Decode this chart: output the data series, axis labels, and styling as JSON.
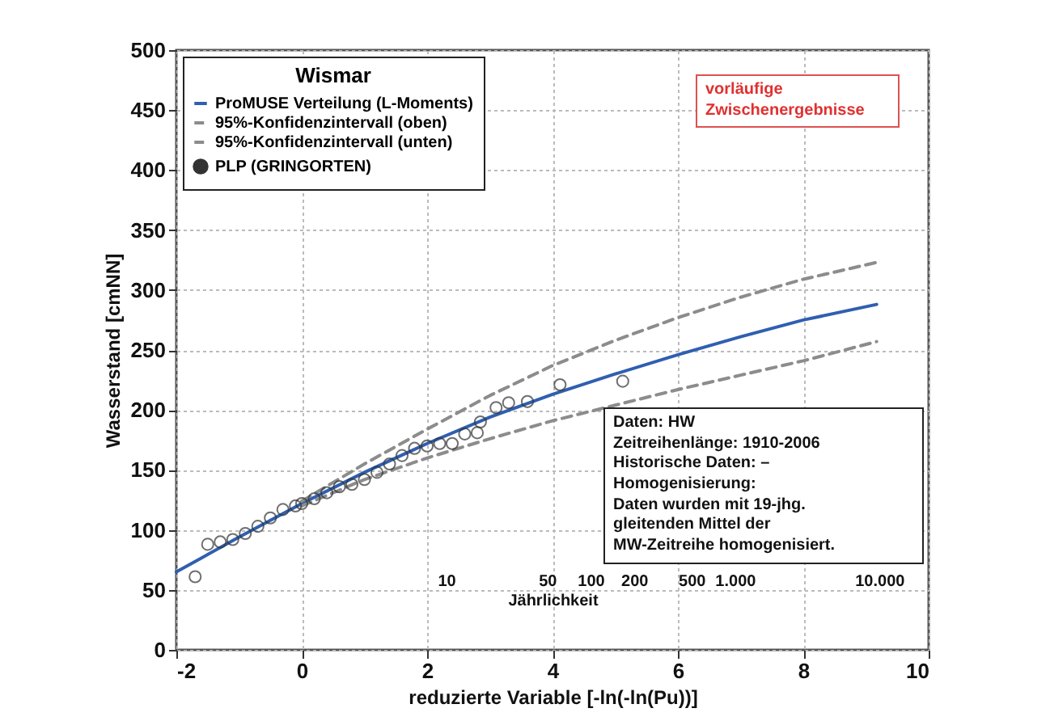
{
  "chart_data": {
    "type": "line",
    "title": "Wismar",
    "xlabel": "reduzierte Variable [-ln(-ln(Pu))]",
    "ylabel": "Wasserstand [cmNN]",
    "x2label": "Jährlichkeit",
    "xlim": [
      -2,
      10
    ],
    "xticks": [
      -2,
      0,
      2,
      4,
      6,
      8,
      10
    ],
    "ylim": [
      0,
      500
    ],
    "yticks": [
      0,
      50,
      100,
      150,
      200,
      250,
      300,
      350,
      400,
      450,
      500
    ],
    "x2lim": [
      0.135,
      22026
    ],
    "x2ticks": [
      10,
      50,
      100,
      200,
      500,
      {
        "value": 1000,
        "label": "1.000"
      },
      {
        "value": 10000,
        "label": "10.000"
      }
    ],
    "log": "x2",
    "grid": true,
    "legend": "top left",
    "series": [
      {
        "name": "ProMUSE Verteilung (L-Moments)",
        "line_style": "solid",
        "color": "#2f5fb0",
        "x": [
          -2,
          -1,
          0,
          1,
          2,
          3,
          4,
          5,
          6,
          7,
          8,
          9.17
        ],
        "values": [
          65,
          94,
          122,
          148,
          172,
          194,
          213,
          230,
          246,
          261,
          275,
          288
        ]
      },
      {
        "name": "95%-Konfidenzintervall (oben)",
        "line_style": "dashed",
        "color": "#8c8c8c",
        "x": [
          0,
          1,
          2,
          3,
          4,
          5,
          6,
          7,
          8,
          9.17
        ],
        "values": [
          124,
          155,
          184,
          212,
          237,
          258,
          277,
          294,
          309,
          323
        ]
      },
      {
        "name": "95%-Konfidenzintervall (unten)",
        "line_style": "dashed",
        "color": "#8c8c8c",
        "x": [
          0,
          1,
          2,
          3,
          4,
          5,
          6,
          7,
          8,
          9.17
        ],
        "values": [
          120,
          142,
          160,
          176,
          191,
          204,
          217,
          229,
          241,
          257
        ]
      },
      {
        "name": "PLP (GRINGORTEN)",
        "type": "scatter",
        "marker": "circle",
        "color": "#333333",
        "x": [
          -1.7,
          -1.5,
          -1.3,
          -1.1,
          -0.9,
          -0.7,
          -0.5,
          -0.3,
          -0.1,
          0,
          0.2,
          0.4,
          0.6,
          0.8,
          1,
          1.2,
          1.4,
          1.6,
          1.8,
          2,
          2.2,
          2.4,
          2.6,
          2.8,
          2.85,
          3.1,
          3.3,
          3.6,
          4.12,
          5.12
        ],
        "values": [
          61,
          88,
          90,
          92,
          97,
          103,
          110,
          117,
          120,
          122,
          126,
          131,
          136,
          138,
          142,
          148,
          155,
          162,
          168,
          170,
          172,
          172,
          180,
          181,
          190,
          202,
          206,
          207,
          221,
          224
        ]
      }
    ],
    "annotations": [
      "vorläufige\nZwischenergebnisse",
      "Daten: HW\nZeitreihenlänge: 1910-2006\nHistorische Daten: –\nHomogenisierung:\nDaten wurden mit 19-jhg.\ngleitenden Mittel der\nMW-Zeitreihe homogenisiert."
    ]
  }
}
